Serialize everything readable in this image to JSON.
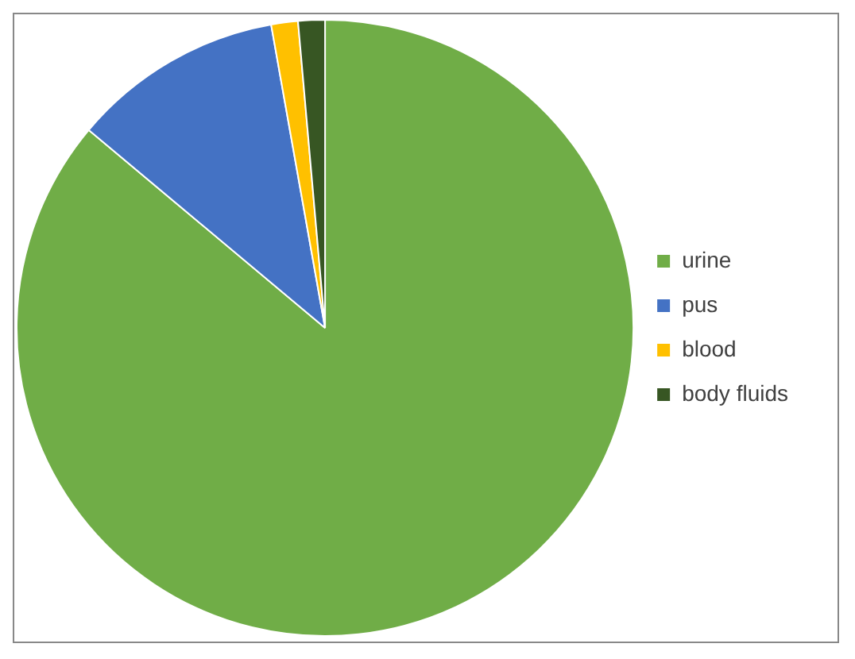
{
  "chart_data": {
    "type": "pie",
    "categories": [
      "urine",
      "pus",
      "blood",
      "body fluids"
    ],
    "values": [
      86.1,
      11.1,
      1.4,
      1.4
    ],
    "colors": [
      "#70ad47",
      "#4472c4",
      "#ffc000",
      "#375623"
    ],
    "legend": "right"
  }
}
